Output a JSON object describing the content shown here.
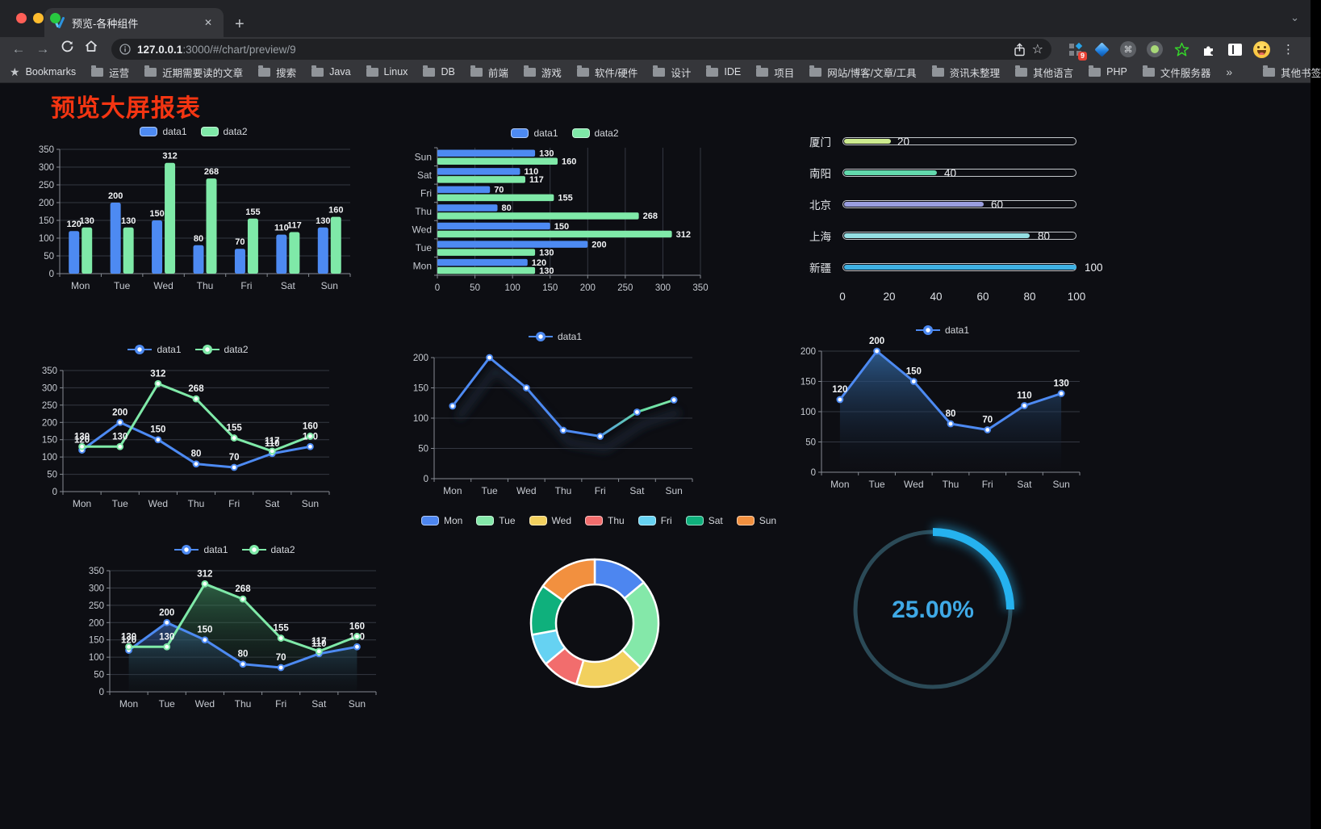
{
  "browser": {
    "traffic_lights": [
      "#ff5f57",
      "#febc2e",
      "#28c840"
    ],
    "tab_title": "预览-各种组件",
    "url_host": "127.0.0.1",
    "url_rest": ":3000/#/chart/preview/9",
    "ext_badge": "9",
    "bookmarks_root": "Bookmarks",
    "bookmark_items": [
      "运营",
      "近期需要读的文章",
      "搜索",
      "Java",
      "Linux",
      "DB",
      "前端",
      "游戏",
      "软件/硬件",
      "设计",
      "IDE",
      "项目",
      "网站/博客/文章/工具",
      "资讯未整理",
      "其他语言",
      "PHP",
      "文件服务器"
    ],
    "other_bookmarks": "其他书签",
    "icons": {
      "back": "←",
      "forward": "→",
      "close": "✕",
      "plus": "+",
      "menu": "⋮",
      "chevron": "⌄",
      "star": "☆",
      "bm_star": "★",
      "overflow": "»",
      "cmd": "⌘"
    }
  },
  "page": {
    "title": "预览大屏报表",
    "title_color": "#f43512",
    "background": "#0d0e13"
  },
  "chart_data": [
    {
      "id": "bar-vertical",
      "type": "bar",
      "categories": [
        "Mon",
        "Tue",
        "Wed",
        "Thu",
        "Fri",
        "Sat",
        "Sun"
      ],
      "series": [
        {
          "name": "data1",
          "color": "#4d8af2",
          "values": [
            120,
            200,
            150,
            80,
            70,
            110,
            130
          ]
        },
        {
          "name": "data2",
          "color": "#7fe9a8",
          "values": [
            130,
            130,
            312,
            268,
            155,
            117,
            160
          ]
        }
      ],
      "ylim": [
        0,
        350
      ],
      "ystep": 50,
      "legend_position": "top",
      "grid": true
    },
    {
      "id": "bar-horizontal",
      "type": "hbar",
      "categories": [
        "Mon",
        "Tue",
        "Wed",
        "Thu",
        "Fri",
        "Sat",
        "Sun"
      ],
      "series": [
        {
          "name": "data1",
          "color": "#4d8af2",
          "values": [
            120,
            200,
            150,
            80,
            70,
            110,
            130
          ]
        },
        {
          "name": "data2",
          "color": "#7fe9a8",
          "values": [
            130,
            130,
            312,
            268,
            155,
            117,
            160
          ]
        }
      ],
      "xlim": [
        0,
        350
      ],
      "xstep": 50,
      "legend_position": "top",
      "grid": true
    },
    {
      "id": "city-progress",
      "type": "progress",
      "rows": [
        {
          "label": "厦门",
          "value": 20,
          "color": "#cdeb8f"
        },
        {
          "label": "南阳",
          "value": 40,
          "color": "#62d9ad"
        },
        {
          "label": "北京",
          "value": 60,
          "color": "#9a9ee0"
        },
        {
          "label": "上海",
          "value": 80,
          "color": "#95dfe3"
        },
        {
          "label": "新疆",
          "value": 100,
          "color": "#3fb1e3"
        }
      ],
      "xlim": [
        0,
        100
      ],
      "xticks": [
        0,
        20,
        40,
        60,
        80,
        100
      ]
    },
    {
      "id": "line-two-series",
      "type": "line",
      "categories": [
        "Mon",
        "Tue",
        "Wed",
        "Thu",
        "Fri",
        "Sat",
        "Sun"
      ],
      "series": [
        {
          "name": "data1",
          "color": "#4d8af2",
          "values": [
            120,
            200,
            150,
            80,
            70,
            110,
            130
          ]
        },
        {
          "name": "data2",
          "color": "#7fe9a8",
          "values": [
            130,
            130,
            312,
            268,
            155,
            117,
            160
          ]
        }
      ],
      "ylim": [
        0,
        350
      ],
      "ystep": 50,
      "labels": true,
      "legend_position": "top"
    },
    {
      "id": "line-gradient",
      "type": "line",
      "categories": [
        "Mon",
        "Tue",
        "Wed",
        "Thu",
        "Fri",
        "Sat",
        "Sun"
      ],
      "series": [
        {
          "name": "data1",
          "color": "#4d8af2",
          "values": [
            120,
            200,
            150,
            80,
            70,
            110,
            130
          ],
          "stroke": "url(#g-line5)"
        }
      ],
      "ylim": [
        0,
        200
      ],
      "ystep": 50,
      "labels": false,
      "shadow": true,
      "legend_position": "top",
      "gradient": [
        "#4d8af2",
        "#7fe9a8"
      ]
    },
    {
      "id": "area-one-series",
      "type": "line",
      "categories": [
        "Mon",
        "Tue",
        "Wed",
        "Thu",
        "Fri",
        "Sat",
        "Sun"
      ],
      "series": [
        {
          "name": "data1",
          "color": "#4d8af2",
          "values": [
            120,
            200,
            150,
            80,
            70,
            110,
            130
          ],
          "area": "url(#g-area6)"
        }
      ],
      "ylim": [
        0,
        200
      ],
      "ystep": 50,
      "labels": true,
      "legend_position": "top"
    },
    {
      "id": "line-area-two-series",
      "type": "line",
      "categories": [
        "Mon",
        "Tue",
        "Wed",
        "Thu",
        "Fri",
        "Sat",
        "Sun"
      ],
      "series": [
        {
          "name": "data1",
          "color": "#4d8af2",
          "values": [
            120,
            200,
            150,
            80,
            70,
            110,
            130
          ],
          "area": "url(#g-area-b)"
        },
        {
          "name": "data2",
          "color": "#7fe9a8",
          "values": [
            130,
            130,
            312,
            268,
            155,
            117,
            160
          ],
          "area": "url(#g-area-g)"
        }
      ],
      "ylim": [
        0,
        350
      ],
      "ystep": 50,
      "labels": true,
      "legend_position": "top"
    },
    {
      "id": "donut-week",
      "type": "donut",
      "items": [
        {
          "name": "Mon",
          "value": 120,
          "color": "#4d86f0"
        },
        {
          "name": "Tue",
          "value": 200,
          "color": "#84e8a9"
        },
        {
          "name": "Wed",
          "value": 150,
          "color": "#f2d05e"
        },
        {
          "name": "Thu",
          "value": 80,
          "color": "#f26d6d"
        },
        {
          "name": "Fri",
          "value": 70,
          "color": "#66d2f2"
        },
        {
          "name": "Sat",
          "value": 110,
          "color": "#0fb07c"
        },
        {
          "name": "Sun",
          "value": 130,
          "color": "#f2903f"
        }
      ],
      "legend_position": "top"
    },
    {
      "id": "gauge-percent",
      "type": "gauge",
      "value": 25,
      "label": "25.00%",
      "color": "#25b2ef",
      "track_color": "#2b4a57",
      "text_color": "#3fa9e6"
    }
  ]
}
